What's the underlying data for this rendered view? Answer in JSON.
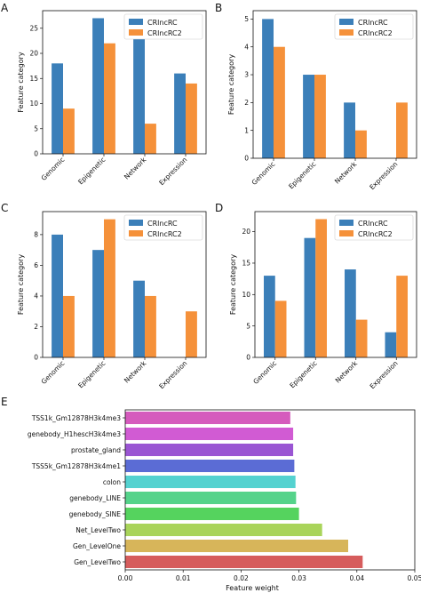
{
  "figure": {
    "panel_letters": [
      "A",
      "B",
      "C",
      "D",
      "E"
    ]
  },
  "chart_data": [
    {
      "panel": "A",
      "type": "bar",
      "ylabel": "Feature category",
      "categories": [
        "Genomic",
        "Epigenetic",
        "Network",
        "Expression"
      ],
      "series": [
        {
          "name": "CRlncRC",
          "color": "#3b7fb9",
          "values": [
            18,
            27,
            24,
            16
          ]
        },
        {
          "name": "CRlncRC2",
          "color": "#f5913a",
          "values": [
            9,
            22,
            6,
            14
          ]
        }
      ],
      "ylim": [
        0,
        28.5
      ],
      "yticks": [
        0,
        5,
        10,
        15,
        20,
        25
      ],
      "legend": "top-right",
      "grid": false
    },
    {
      "panel": "B",
      "type": "bar",
      "ylabel": "Feature category",
      "categories": [
        "Genomic",
        "Epigenetic",
        "Network",
        "Expression"
      ],
      "series": [
        {
          "name": "CRlncRC",
          "color": "#3b7fb9",
          "values": [
            5,
            3,
            2,
            0
          ]
        },
        {
          "name": "CRlncRC2",
          "color": "#f5913a",
          "values": [
            4,
            3,
            1,
            2
          ]
        }
      ],
      "ylim": [
        0,
        5.3
      ],
      "yticks": [
        0,
        1,
        2,
        3,
        4,
        5
      ],
      "legend": "top-right",
      "grid": false
    },
    {
      "panel": "C",
      "type": "bar",
      "ylabel": "Feature category",
      "categories": [
        "Genomic",
        "Epigenetic",
        "Network",
        "Expression"
      ],
      "series": [
        {
          "name": "CRlncRC",
          "color": "#3b7fb9",
          "values": [
            8,
            7,
            5,
            0
          ]
        },
        {
          "name": "CRlncRC2",
          "color": "#f5913a",
          "values": [
            4,
            9,
            4,
            3
          ]
        }
      ],
      "ylim": [
        0,
        9.5
      ],
      "yticks": [
        0,
        2,
        4,
        6,
        8
      ],
      "legend": "top-right",
      "grid": false
    },
    {
      "panel": "D",
      "type": "bar",
      "ylabel": "Feature category",
      "categories": [
        "Genomic",
        "Epigenetic",
        "Network",
        "Expression"
      ],
      "series": [
        {
          "name": "CRlncRC",
          "color": "#3b7fb9",
          "values": [
            13,
            19,
            14,
            4
          ]
        },
        {
          "name": "CRlncRC2",
          "color": "#f5913a",
          "values": [
            9,
            22,
            6,
            13
          ]
        }
      ],
      "ylim": [
        0,
        23.2
      ],
      "yticks": [
        0,
        5,
        10,
        15,
        20
      ],
      "legend": "top-right",
      "grid": false
    },
    {
      "panel": "E",
      "type": "bar",
      "orientation": "horizontal",
      "xlabel": "Feature weight",
      "categories": [
        "TSS1k_Gm12878H3k4me3",
        "genebody_H1hescH3k4me3",
        "prostate_gland",
        "TSS5k_Gm12878H3k4me1",
        "colon",
        "genebody_LINE",
        "genebody_SINE",
        "Net_LevelTwo",
        "Gen_LevelOne",
        "Gen_LevelTwo"
      ],
      "values": [
        0.0285,
        0.029,
        0.029,
        0.0292,
        0.0294,
        0.0295,
        0.03,
        0.034,
        0.0385,
        0.041
      ],
      "colors": [
        "#d55bbd",
        "#d15bd3",
        "#9a55d3",
        "#5b6cd5",
        "#54d2d0",
        "#55d38a",
        "#55d35e",
        "#a9d45a",
        "#d7b55a",
        "#d65c5c"
      ],
      "xlim": [
        0,
        0.05
      ],
      "xticks": [
        0.0,
        0.01,
        0.02,
        0.03,
        0.04,
        0.05
      ],
      "grid": false
    }
  ]
}
